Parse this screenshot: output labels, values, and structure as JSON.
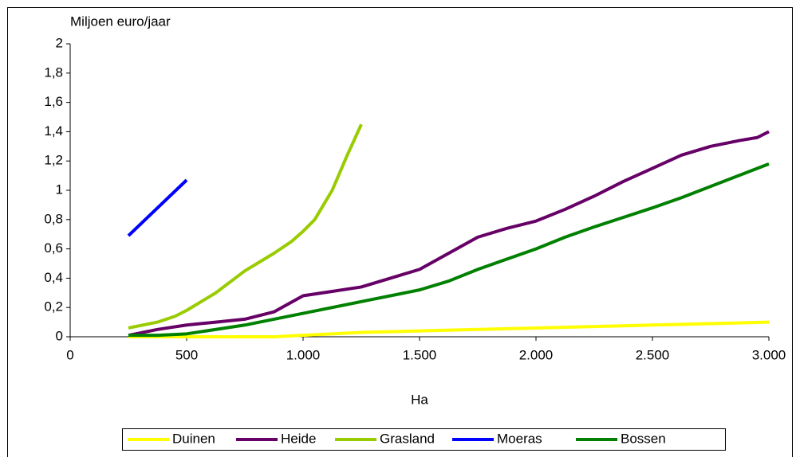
{
  "chart_data": {
    "type": "line",
    "y_label": "Miljoen euro/jaar",
    "x_label": "Ha",
    "xlim": [
      0,
      3000
    ],
    "xticks": [
      0,
      500,
      {
        "value": 1000,
        "label": "1.000"
      },
      {
        "value": 1500,
        "label": "1.500"
      },
      {
        "value": 2000,
        "label": "2.000"
      },
      {
        "value": 2500,
        "label": "2.500"
      },
      {
        "value": 3000,
        "label": "3.000"
      }
    ],
    "ylim": [
      0,
      2
    ],
    "yticks": [
      0,
      {
        "value": 0.2,
        "label": "0,2"
      },
      {
        "value": 0.4,
        "label": "0,4"
      },
      {
        "value": 0.6,
        "label": "0,6"
      },
      {
        "value": 0.8,
        "label": "0,8"
      },
      1,
      {
        "value": 1.2,
        "label": "1,2"
      },
      {
        "value": 1.4,
        "label": "1,4"
      },
      {
        "value": 1.6,
        "label": "1,6"
      },
      {
        "value": 1.8,
        "label": "1,8"
      },
      2
    ],
    "legend": "bottom",
    "series": [
      {
        "name": "Duinen",
        "color": "#ffff00",
        "x": [
          250,
          500,
          750,
          875,
          1000,
          1250,
          1500,
          1750,
          2000,
          2250,
          2500,
          2750,
          3000
        ],
        "values": [
          0,
          0,
          0,
          0,
          0.01,
          0.03,
          0.04,
          0.05,
          0.06,
          0.07,
          0.08,
          0.09,
          0.1
        ]
      },
      {
        "name": "Heide",
        "color": "#660066",
        "x": [
          250,
          375,
          500,
          625,
          750,
          875,
          1000,
          1125,
          1250,
          1375,
          1500,
          1625,
          1750,
          1875,
          2000,
          2125,
          2250,
          2375,
          2500,
          2625,
          2750,
          2875,
          2950,
          3000
        ],
        "values": [
          0.01,
          0.05,
          0.08,
          0.1,
          0.12,
          0.17,
          0.28,
          0.31,
          0.34,
          0.4,
          0.46,
          0.57,
          0.68,
          0.74,
          0.79,
          0.87,
          0.96,
          1.06,
          1.15,
          1.24,
          1.3,
          1.34,
          1.36,
          1.4
        ]
      },
      {
        "name": "Grasland",
        "color": "#99cc00",
        "x": [
          250,
          375,
          450,
          500,
          625,
          750,
          875,
          950,
          1000,
          1050,
          1125,
          1187,
          1250
        ],
        "values": [
          0.06,
          0.1,
          0.14,
          0.18,
          0.3,
          0.45,
          0.57,
          0.65,
          0.72,
          0.8,
          1.0,
          1.23,
          1.45
        ]
      },
      {
        "name": "Moeras",
        "color": "#0000ff",
        "x": [
          250,
          500
        ],
        "values": [
          0.69,
          1.07
        ]
      },
      {
        "name": "Bossen",
        "color": "#008000",
        "x": [
          250,
          375,
          500,
          750,
          1000,
          1250,
          1500,
          1625,
          1750,
          2000,
          2125,
          2250,
          2500,
          2625,
          3000
        ],
        "values": [
          0.01,
          0.01,
          0.02,
          0.08,
          0.16,
          0.24,
          0.32,
          0.38,
          0.46,
          0.6,
          0.68,
          0.75,
          0.88,
          0.95,
          1.18
        ]
      }
    ]
  }
}
